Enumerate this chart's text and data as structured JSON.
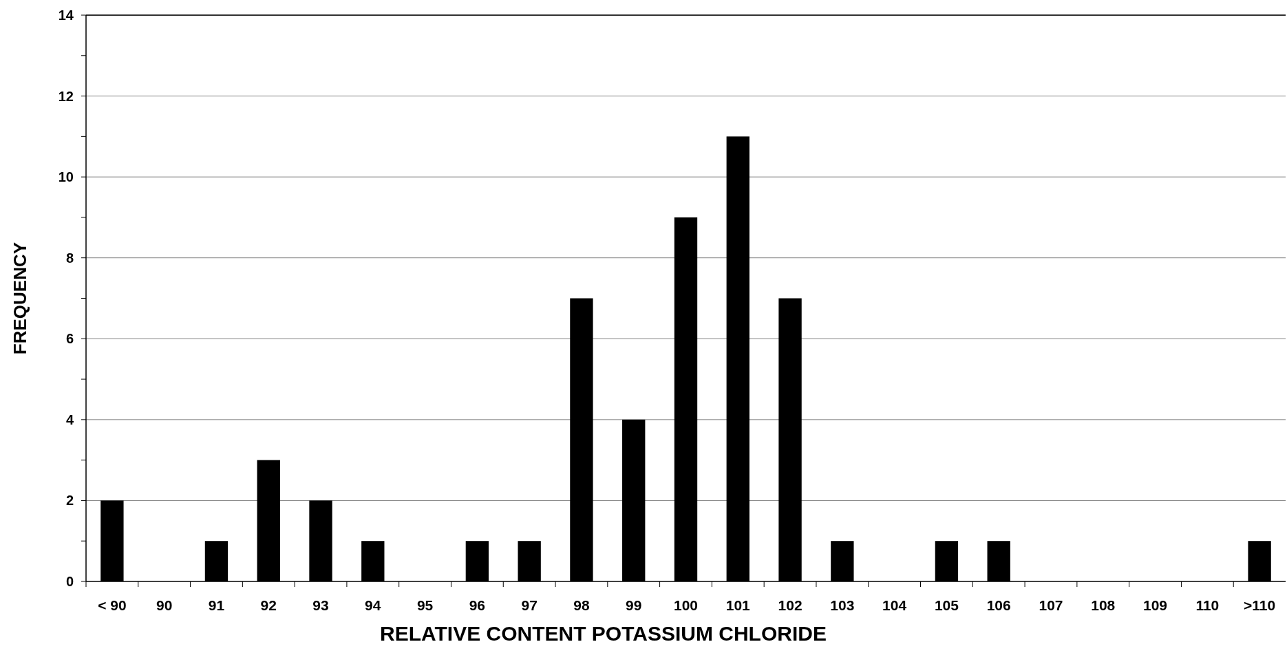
{
  "chart_data": {
    "type": "bar",
    "xlabel": "RELATIVE CONTENT POTASSIUM CHLORIDE",
    "ylabel": "FREQUENCY",
    "categories": [
      "< 90",
      "90",
      "91",
      "92",
      "93",
      "94",
      "95",
      "96",
      "97",
      "98",
      "99",
      "100",
      "101",
      "102",
      "103",
      "104",
      "105",
      "106",
      "107",
      "108",
      "109",
      "110",
      ">110"
    ],
    "values": [
      2,
      0,
      1,
      3,
      2,
      1,
      0,
      1,
      1,
      7,
      4,
      9,
      11,
      7,
      1,
      0,
      1,
      1,
      0,
      0,
      0,
      0,
      1
    ],
    "color": "#000000",
    "ylim": [
      0,
      14
    ],
    "yticks": [
      0,
      {
        "value": 1,
        "label": null
      },
      2,
      {
        "value": 3,
        "label": null
      },
      4,
      {
        "value": 5,
        "label": null
      },
      6,
      {
        "value": 7,
        "label": null
      },
      8,
      {
        "value": 9,
        "label": null
      },
      10,
      {
        "value": 11,
        "label": null
      },
      12,
      {
        "value": 13,
        "label": null
      },
      14
    ],
    "grid": "y"
  }
}
